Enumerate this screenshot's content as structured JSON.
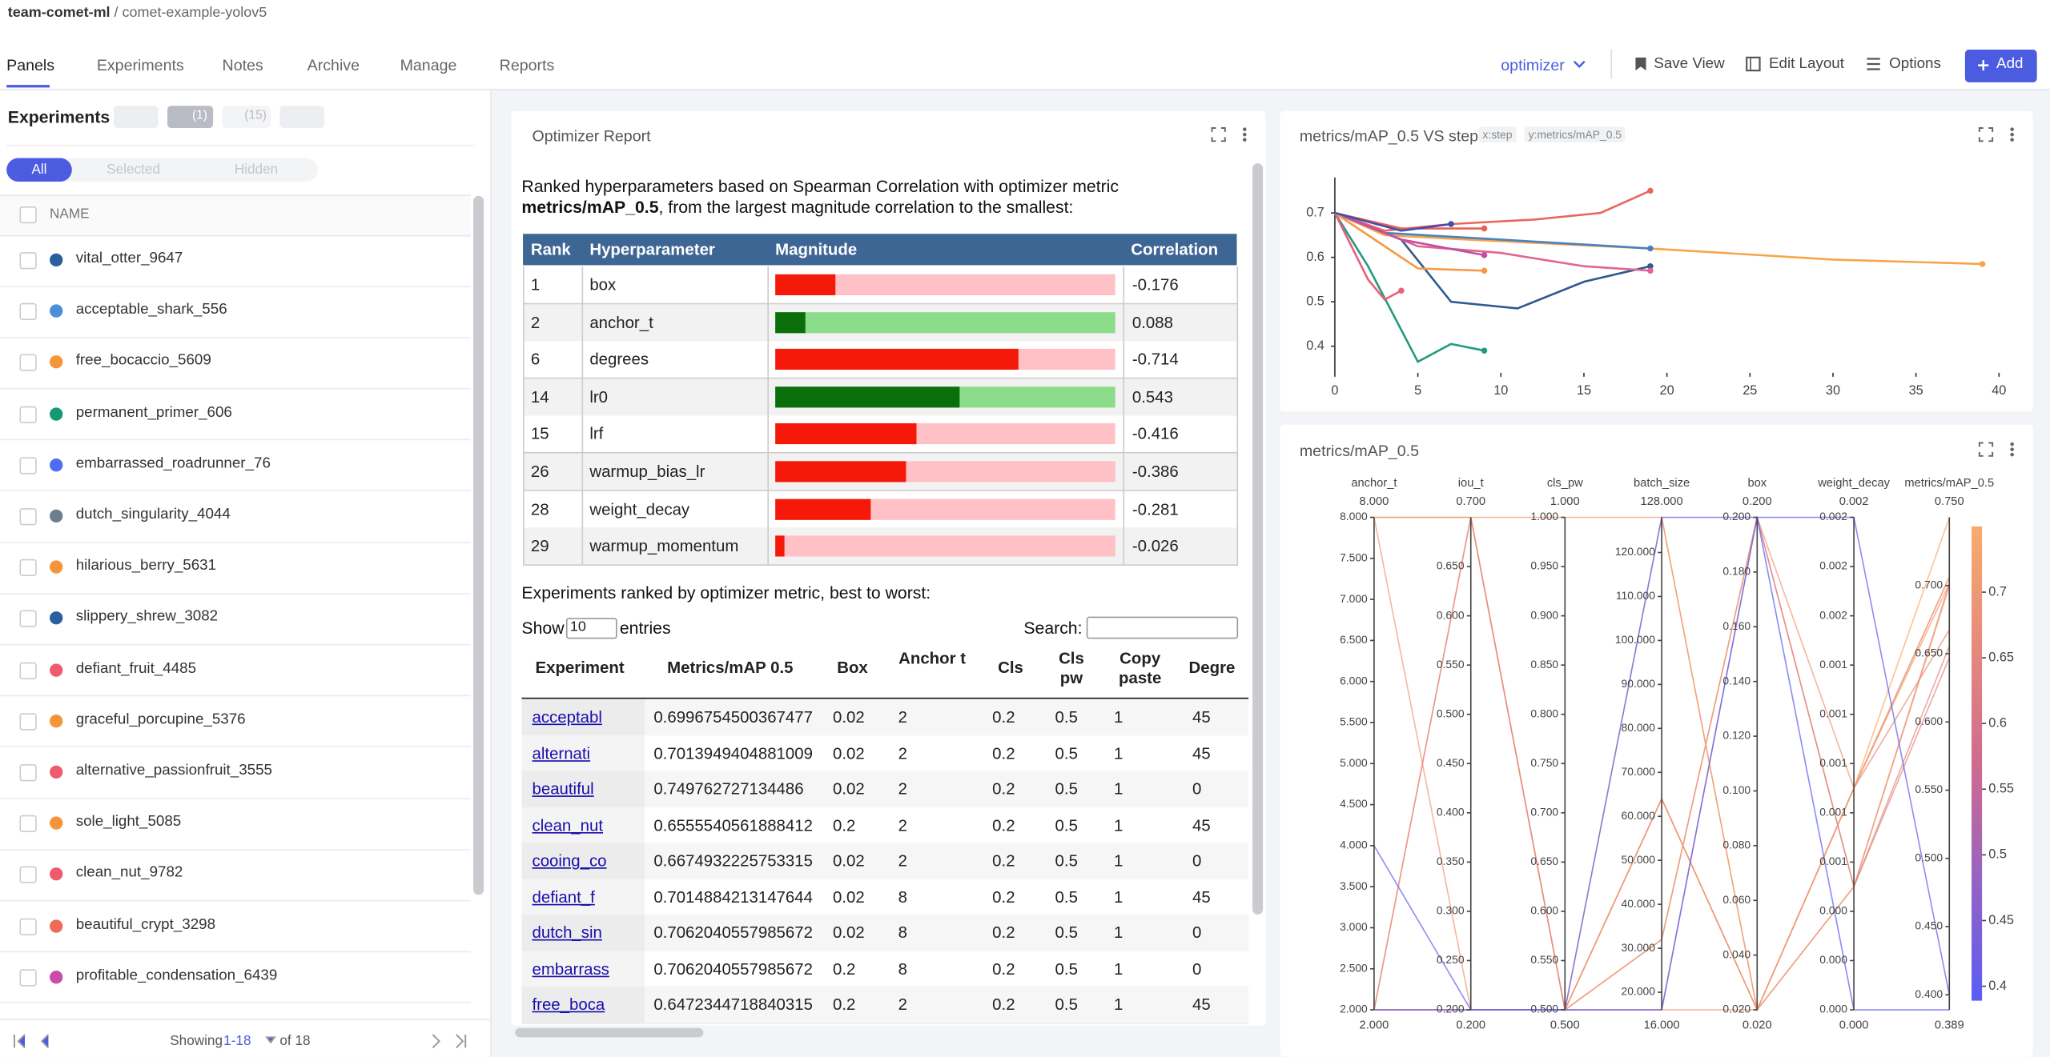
{
  "header": {
    "workspace": "team-comet-ml",
    "separator": "/",
    "project": "comet-example-yolov5"
  },
  "tabs": [
    "Panels",
    "Experiments",
    "Notes",
    "Archive",
    "Manage",
    "Reports"
  ],
  "toolbar": {
    "view": "optimizer",
    "save": "Save View",
    "edit": "Edit Layout",
    "options": "Options",
    "add": "Add"
  },
  "sidebar": {
    "title": "Experiments",
    "filter_count": "(1)",
    "group_count": "(15)",
    "segments": [
      "All",
      "Selected",
      "Hidden"
    ],
    "column": "NAME",
    "experiments": [
      {
        "name": "vital_otter_9647",
        "color": "#2c5f9e"
      },
      {
        "name": "acceptable_shark_556",
        "color": "#4a90d9"
      },
      {
        "name": "free_bocaccio_5609",
        "color": "#f4953a"
      },
      {
        "name": "permanent_primer_606",
        "color": "#149a72"
      },
      {
        "name": "embarrassed_roadrunner_76",
        "color": "#4e6cf0"
      },
      {
        "name": "dutch_singularity_4044",
        "color": "#6c7f8f"
      },
      {
        "name": "hilarious_berry_5631",
        "color": "#f4953a"
      },
      {
        "name": "slippery_shrew_3082",
        "color": "#2c5f9e"
      },
      {
        "name": "defiant_fruit_4485",
        "color": "#ef5a6f"
      },
      {
        "name": "graceful_porcupine_5376",
        "color": "#f4953a"
      },
      {
        "name": "alternative_passionfruit_3555",
        "color": "#ef5a6f"
      },
      {
        "name": "sole_light_5085",
        "color": "#f4953a"
      },
      {
        "name": "clean_nut_9782",
        "color": "#ef5a6f"
      },
      {
        "name": "beautiful_crypt_3298",
        "color": "#f06a5a"
      },
      {
        "name": "profitable_condensation_6439",
        "color": "#c84da8"
      }
    ],
    "pagination": {
      "showing": "Showing",
      "range": "1-18",
      "of": "of 18"
    }
  },
  "report": {
    "title": "Optimizer Report",
    "intro": [
      "Ranked hyperparameters based on Spearman Correlation with optimizer metric ",
      "metrics/mAP_0.5",
      ", from the largest magnitude correlation to the smallest:"
    ],
    "ranking_headers": [
      "Rank",
      "Hyperparameter",
      "Magnitude",
      "Correlation"
    ],
    "colors": {
      "header": "#3e6695",
      "negative": "#f5190a",
      "negative_track": "#ffc0c6",
      "positive": "#0a6e0a",
      "positive_track": "#8bdc8b"
    },
    "ranking": [
      {
        "rank": 1,
        "hyperparameter": "box",
        "correlation": -0.176
      },
      {
        "rank": 2,
        "hyperparameter": "anchor_t",
        "correlation": 0.088
      },
      {
        "rank": 6,
        "hyperparameter": "degrees",
        "correlation": -0.714
      },
      {
        "rank": 14,
        "hyperparameter": "lr0",
        "correlation": 0.543
      },
      {
        "rank": 15,
        "hyperparameter": "lrf",
        "correlation": -0.416
      },
      {
        "rank": 26,
        "hyperparameter": "warmup_bias_lr",
        "correlation": -0.386
      },
      {
        "rank": 28,
        "hyperparameter": "weight_decay",
        "correlation": -0.281
      },
      {
        "rank": 29,
        "hyperparameter": "warmup_momentum",
        "correlation": -0.026
      }
    ],
    "experiments_caption": "Experiments ranked by optimizer metric, best to worst:",
    "show": "Show",
    "page_size": "10",
    "entries": "entries",
    "search": "Search:",
    "experiment_headers": [
      "Experiment",
      "Metrics/mAP 0.5",
      "Box",
      "Anchor t",
      "Cls",
      "Cls pw",
      "Copy paste",
      "Degre"
    ],
    "experiment_rows": [
      [
        "acceptabl",
        0.6996754500367477,
        0.02,
        2,
        0.2,
        0.5,
        1,
        45
      ],
      [
        "alternati",
        0.7013949404881009,
        0.02,
        2,
        0.2,
        0.5,
        1,
        45
      ],
      [
        "beautiful",
        0.749762727134486,
        0.02,
        2,
        0.2,
        0.5,
        1,
        0
      ],
      [
        "clean_nut",
        0.6555540561888412,
        0.2,
        2,
        0.2,
        0.5,
        1,
        45
      ],
      [
        "cooing_co",
        0.6674932225753315,
        0.02,
        2,
        0.2,
        0.5,
        1,
        0
      ],
      [
        "defiant_f",
        0.7014884213147644,
        0.02,
        8,
        0.2,
        0.5,
        1,
        45
      ],
      [
        "dutch_sin",
        0.7062040557985672,
        0.02,
        8,
        0.2,
        0.5,
        1,
        0
      ],
      [
        "embarrass",
        0.7062040557985672,
        0.2,
        8,
        0.2,
        0.5,
        1,
        0
      ],
      [
        "free_boca",
        0.6472344718840315,
        0.2,
        2,
        0.2,
        0.5,
        1,
        45
      ]
    ]
  },
  "chart_data": [
    {
      "type": "line",
      "title": "metrics/mAP_0.5 VS step",
      "x_tag": "x:step",
      "y_tag": "y:metrics/mAP_0.5",
      "xlim": [
        0,
        41
      ],
      "xticks": [
        0,
        5,
        10,
        15,
        20,
        25,
        30,
        35,
        40
      ],
      "ylim": [
        0.34,
        0.78
      ],
      "yticks": [
        0.4,
        0.5,
        0.6,
        0.7
      ],
      "grid": false,
      "series": [
        {
          "color": "#e8675a",
          "x": [
            0,
            3,
            7,
            12,
            16,
            19
          ],
          "values": [
            0.7,
            0.66,
            0.675,
            0.685,
            0.7,
            0.75
          ]
        },
        {
          "color": "#f5a54a",
          "x": [
            0,
            3,
            8,
            19,
            30,
            39
          ],
          "values": [
            0.7,
            0.65,
            0.64,
            0.62,
            0.595,
            0.585
          ]
        },
        {
          "color": "#4a80c0",
          "x": [
            0,
            3,
            10,
            19
          ],
          "values": [
            0.7,
            0.655,
            0.64,
            0.62
          ]
        },
        {
          "color": "#2f5a8f",
          "x": [
            0,
            4,
            7,
            11,
            15,
            19
          ],
          "values": [
            0.7,
            0.64,
            0.5,
            0.485,
            0.545,
            0.58
          ]
        },
        {
          "color": "#249a80",
          "x": [
            0,
            2,
            5,
            7,
            9
          ],
          "values": [
            0.7,
            0.58,
            0.365,
            0.405,
            0.39
          ]
        },
        {
          "color": "#e9607a",
          "x": [
            0,
            2,
            3,
            4
          ],
          "values": [
            0.7,
            0.55,
            0.505,
            0.525
          ]
        },
        {
          "color": "#e2658c",
          "x": [
            0,
            5,
            10,
            15,
            19
          ],
          "values": [
            0.7,
            0.625,
            0.61,
            0.58,
            0.57
          ]
        },
        {
          "color": "#c24fa3",
          "x": [
            0,
            4,
            9
          ],
          "values": [
            0.7,
            0.64,
            0.605
          ]
        },
        {
          "color": "#f59a45",
          "x": [
            0,
            4,
            5,
            9
          ],
          "values": [
            0.7,
            0.6,
            0.575,
            0.57
          ]
        },
        {
          "color": "#ec5f55",
          "x": [
            0,
            4,
            9
          ],
          "values": [
            0.7,
            0.665,
            0.665
          ]
        },
        {
          "color": "#3c4fb0",
          "x": [
            0,
            4,
            7
          ],
          "values": [
            0.7,
            0.66,
            0.675
          ]
        }
      ]
    },
    {
      "type": "parallel",
      "title": "metrics/mAP_0.5",
      "axes": [
        {
          "name": "anchor_t",
          "min": {
            "value": 2,
            "label": "2.000"
          },
          "max": {
            "value": 8,
            "label": "8.000"
          },
          "ticks": [
            {
              "value": 2,
              "label": "2.000"
            },
            {
              "value": 2.5,
              "label": "2.500"
            },
            {
              "value": 3,
              "label": "3.000"
            },
            {
              "value": 3.5,
              "label": "3.500"
            },
            {
              "value": 4,
              "label": "4.000"
            },
            {
              "value": 4.5,
              "label": "4.500"
            },
            {
              "value": 5,
              "label": "5.000"
            },
            {
              "value": 5.5,
              "label": "5.500"
            },
            {
              "value": 6,
              "label": "6.000"
            },
            {
              "value": 6.5,
              "label": "6.500"
            },
            {
              "value": 7,
              "label": "7.000"
            },
            {
              "value": 7.5,
              "label": "7.500"
            },
            {
              "value": 8,
              "label": "8.000"
            }
          ]
        },
        {
          "name": "iou_t",
          "min": {
            "value": 0.2,
            "label": "0.200"
          },
          "max": {
            "value": 0.7,
            "label": "0.700"
          },
          "ticks": [
            {
              "value": 0.2,
              "label": "0.200"
            },
            {
              "value": 0.25,
              "label": "0.250"
            },
            {
              "value": 0.3,
              "label": "0.300"
            },
            {
              "value": 0.35,
              "label": "0.350"
            },
            {
              "value": 0.4,
              "label": "0.400"
            },
            {
              "value": 0.45,
              "label": "0.450"
            },
            {
              "value": 0.5,
              "label": "0.500"
            },
            {
              "value": 0.55,
              "label": "0.550"
            },
            {
              "value": 0.6,
              "label": "0.600"
            },
            {
              "value": 0.65,
              "label": "0.650"
            }
          ]
        },
        {
          "name": "cls_pw",
          "min": {
            "value": 0.5,
            "label": "0.500"
          },
          "max": {
            "value": 1,
            "label": "1.000"
          },
          "ticks": [
            {
              "value": 0.5,
              "label": "0.500"
            },
            {
              "value": 0.55,
              "label": "0.550"
            },
            {
              "value": 0.6,
              "label": "0.600"
            },
            {
              "value": 0.65,
              "label": "0.650"
            },
            {
              "value": 0.7,
              "label": "0.700"
            },
            {
              "value": 0.75,
              "label": "0.750"
            },
            {
              "value": 0.8,
              "label": "0.800"
            },
            {
              "value": 0.85,
              "label": "0.850"
            },
            {
              "value": 0.9,
              "label": "0.900"
            },
            {
              "value": 0.95,
              "label": "0.950"
            },
            {
              "value": 1,
              "label": "1.000"
            }
          ]
        },
        {
          "name": "batch_size",
          "min": {
            "value": 16,
            "label": "16.000"
          },
          "max": {
            "value": 128,
            "label": "128.000"
          },
          "ticks": [
            {
              "value": 20,
              "label": "20.000"
            },
            {
              "value": 30,
              "label": "30.000"
            },
            {
              "value": 40,
              "label": "40.000"
            },
            {
              "value": 50,
              "label": "50.000"
            },
            {
              "value": 60,
              "label": "60.000"
            },
            {
              "value": 70,
              "label": "70.000"
            },
            {
              "value": 80,
              "label": "80.000"
            },
            {
              "value": 90,
              "label": "90.000"
            },
            {
              "value": 100,
              "label": "100.000"
            },
            {
              "value": 110,
              "label": "110.000"
            },
            {
              "value": 120,
              "label": "120.000"
            }
          ]
        },
        {
          "name": "box",
          "min": {
            "value": 0.02,
            "label": "0.020"
          },
          "max": {
            "value": 0.2,
            "label": "0.200"
          },
          "ticks": [
            {
              "value": 0.02,
              "label": "0.020"
            },
            {
              "value": 0.04,
              "label": "0.040"
            },
            {
              "value": 0.06,
              "label": "0.060"
            },
            {
              "value": 0.08,
              "label": "0.080"
            },
            {
              "value": 0.1,
              "label": "0.100"
            },
            {
              "value": 0.12,
              "label": "0.120"
            },
            {
              "value": 0.14,
              "label": "0.140"
            },
            {
              "value": 0.16,
              "label": "0.160"
            },
            {
              "value": 0.18,
              "label": "0.180"
            },
            {
              "value": 0.2,
              "label": "0.200"
            }
          ]
        },
        {
          "name": "weight_decay",
          "min": {
            "value": 0,
            "label": "0.000"
          },
          "max": {
            "value": 0.002,
            "label": "0.002"
          },
          "ticks": [
            {
              "value": 0,
              "label": "0.000"
            },
            {
              "value": 0.0002,
              "label": "0.000"
            },
            {
              "value": 0.0004,
              "label": "0.000"
            },
            {
              "value": 0.0006,
              "label": "0.001"
            },
            {
              "value": 0.0008,
              "label": "0.001"
            },
            {
              "value": 0.001,
              "label": "0.001"
            },
            {
              "value": 0.0012,
              "label": "0.001"
            },
            {
              "value": 0.0014,
              "label": "0.001"
            },
            {
              "value": 0.0016,
              "label": "0.002"
            },
            {
              "value": 0.0018,
              "label": "0.002"
            },
            {
              "value": 0.002,
              "label": "0.002"
            }
          ]
        },
        {
          "name": "metrics/mAP_0.5",
          "min": {
            "value": 0.389,
            "label": "0.389"
          },
          "max": {
            "value": 0.75,
            "label": "0.750"
          },
          "ticks": [
            {
              "value": 0.4,
              "label": "0.400"
            },
            {
              "value": 0.45,
              "label": "0.450"
            },
            {
              "value": 0.5,
              "label": "0.500"
            },
            {
              "value": 0.55,
              "label": "0.550"
            },
            {
              "value": 0.6,
              "label": "0.600"
            },
            {
              "value": 0.65,
              "label": "0.650"
            },
            {
              "value": 0.7,
              "label": "0.700"
            }
          ]
        }
      ],
      "lines": [
        [
          2,
          0.2,
          0.5,
          16,
          0.02,
          0.0005,
          0.6997
        ],
        [
          2,
          0.2,
          0.5,
          64,
          0.02,
          0.0005,
          0.7014
        ],
        [
          2,
          0.7,
          0.5,
          128,
          0.02,
          0.0009,
          0.7498
        ],
        [
          2,
          0.2,
          0.5,
          32,
          0.2,
          0.0005,
          0.6556
        ],
        [
          2,
          0.2,
          0.5,
          64,
          0.02,
          0.0009,
          0.6675
        ],
        [
          8,
          0.7,
          1,
          128,
          0.02,
          0.0009,
          0.7015
        ],
        [
          8,
          0.7,
          0.5,
          64,
          0.02,
          0.0009,
          0.7062
        ],
        [
          8,
          0.2,
          0.5,
          32,
          0.2,
          0.0009,
          0.7062
        ],
        [
          2,
          0.7,
          0.5,
          16,
          0.2,
          0.0005,
          0.6472
        ],
        [
          4,
          0.2,
          0.5,
          128,
          0.2,
          0.002,
          0.4
        ],
        [
          2,
          0.2,
          0.5,
          16,
          0.2,
          0,
          0.389
        ]
      ],
      "colorbar": {
        "colors": [
          "#5a5cf5",
          "#d06a8f",
          "#f9ab6b"
        ],
        "ticks": [
          0.4,
          0.45,
          0.5,
          0.55,
          0.6,
          0.65,
          0.7
        ]
      }
    }
  ]
}
